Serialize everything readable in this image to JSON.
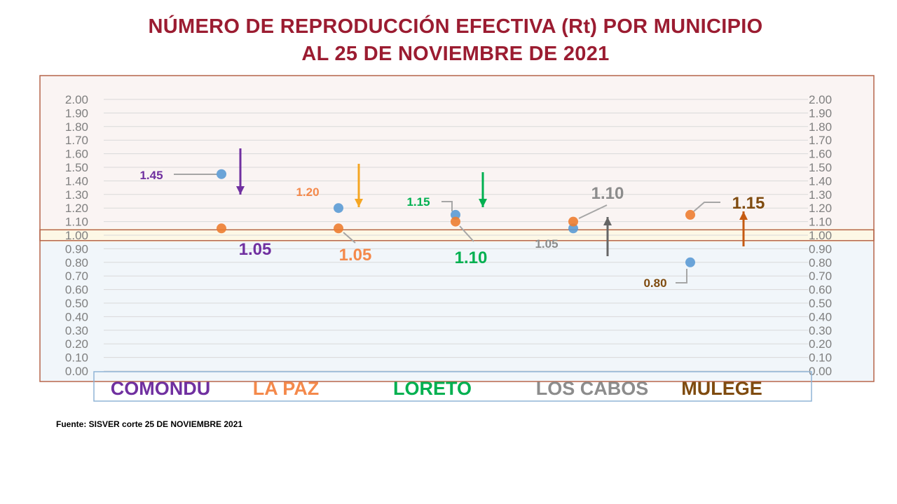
{
  "title_line1": "NÚMERO DE REPRODUCCIÓN EFECTIVA (Rt) POR MUNICIPIO",
  "title_line2": "AL 25 DE NOVIEMBRE DE 2021",
  "source": "Fuente: SISVER corte 25 DE NOVIEMBRE 2021",
  "colors": {
    "title": "#9b1c31",
    "grid": "#d9d9d9",
    "tick": "#7f7f7f",
    "box_border": "#b5654a",
    "upper_band": "#faf4f3",
    "threshold_band": "#fdf8e6",
    "lower_band": "#f1f6fa",
    "legend_border": "#8fb4d6",
    "series_blue": "#5b9bd5",
    "series_orange": "#ed7d31"
  },
  "chart_data": {
    "type": "scatter",
    "ylim": [
      0,
      2
    ],
    "ytick_step": 0.1,
    "categories": [
      "COMONDU",
      "LA PAZ",
      "LORETO",
      "LOS CABOS",
      "MULEGE"
    ],
    "category_colors": [
      "#7030a0",
      "#f4894b",
      "#00b050",
      "#8c8c8c",
      "#7f4b0f"
    ],
    "series": [
      {
        "values": [
          1.45,
          1.2,
          1.15,
          1.05,
          0.8
        ],
        "color": "#5b9bd5"
      },
      {
        "values": [
          1.05,
          1.05,
          1.1,
          1.1,
          1.15
        ],
        "color": "#ed7d31"
      }
    ],
    "labels_series1": [
      "1.45",
      "1.20",
      "1.15",
      "1.05",
      "0.80"
    ],
    "labels_series2": [
      "1.05",
      "1.05",
      "1.10",
      "1.10",
      "1.15"
    ],
    "trend": [
      "down",
      "down",
      "down",
      "up",
      "up"
    ],
    "trend_colors": [
      "#7030a0",
      "#f5a623",
      "#00b050",
      "#666666",
      "#c55a11"
    ]
  }
}
